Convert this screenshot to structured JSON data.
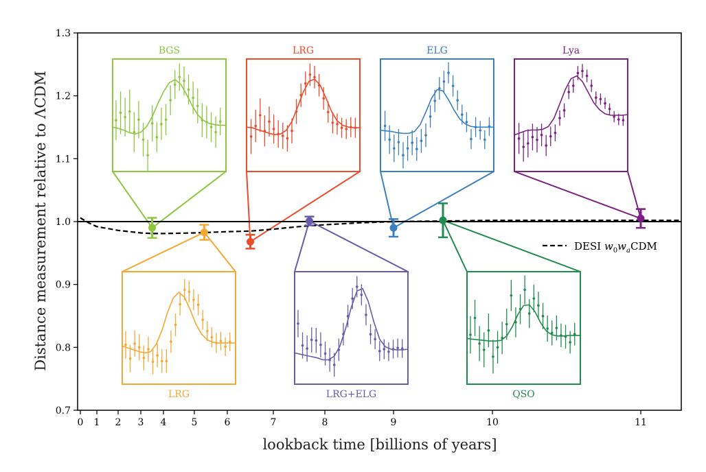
{
  "chart_data": {
    "type": "scatter",
    "xlabel": "lookback time [billions of years]",
    "ylabel": "Distance measurement relative to ΛCDM",
    "ylim": [
      0.7,
      1.3
    ],
    "yticks": [
      "0.7",
      "0.8",
      "0.9",
      "1.0",
      "1.1",
      "1.2",
      "1.3"
    ],
    "xticks": [
      "0",
      "1",
      "2",
      "3",
      "4",
      "5",
      "6",
      "7",
      "8",
      "9",
      "10",
      "11"
    ],
    "x_axis_note": "non-linear lookback-time axis",
    "grid": false,
    "reference_line_y": 1.0,
    "legend": {
      "position": "right",
      "entries": [
        "DESI w0waCDM"
      ]
    },
    "model_curve": {
      "name": "DESI w0waCDM",
      "style": "dashed",
      "x": [
        0,
        0.5,
        1,
        2,
        3,
        3.5,
        4,
        5,
        6,
        6.5,
        7,
        7.5,
        8,
        8.5,
        9,
        9.5,
        10,
        10.5,
        11,
        11.5
      ],
      "y": [
        1.006,
        0.998,
        0.992,
        0.986,
        0.982,
        0.981,
        0.981,
        0.982,
        0.984,
        0.985,
        0.988,
        0.992,
        0.995,
        0.998,
        1.0,
        1.001,
        1.002,
        1.002,
        1.002,
        1.002
      ]
    },
    "series": [
      {
        "name": "BGS",
        "color": "#8dc63f",
        "x": 3.5,
        "y": 0.99,
        "yerr": 0.016,
        "inset_position": "top"
      },
      {
        "name": "LRG",
        "color": "#f7a733",
        "x": 5.3,
        "y": 0.983,
        "yerr": 0.012,
        "inset_position": "bottom"
      },
      {
        "name": "LRG",
        "color": "#ee4b2b",
        "x": 6.5,
        "y": 0.968,
        "yerr": 0.011,
        "inset_position": "top"
      },
      {
        "name": "LRG+ELG",
        "color": "#6a5aad",
        "x": 7.7,
        "y": 1.001,
        "yerr": 0.007,
        "inset_position": "bottom"
      },
      {
        "name": "ELG",
        "color": "#3a7fbf",
        "x": 9.0,
        "y": 0.99,
        "yerr": 0.014,
        "inset_position": "top"
      },
      {
        "name": "QSO",
        "color": "#1e8c4e",
        "x": 9.5,
        "y": 1.002,
        "yerr": 0.027,
        "inset_position": "bottom"
      },
      {
        "name": "Lya",
        "color": "#7b2183",
        "x": 11.0,
        "y": 1.005,
        "yerr": 0.015,
        "inset_position": "top"
      }
    ],
    "insets": [
      {
        "label": "BGS",
        "line": [
          0.151,
          0.149,
          0.146,
          0.142,
          0.14,
          0.143,
          0.152,
          0.168,
          0.189,
          0.208,
          0.222,
          0.227,
          0.22,
          0.204,
          0.186,
          0.171,
          0.162,
          0.157,
          0.155,
          0.154,
          0.154
        ],
        "points": [
          [
            0.03,
            0.162,
            0.032
          ],
          [
            0.07,
            0.174,
            0.034
          ],
          [
            0.11,
            0.167,
            0.031
          ],
          [
            0.15,
            0.176,
            0.035
          ],
          [
            0.19,
            0.143,
            0.032
          ],
          [
            0.23,
            0.163,
            0.03
          ],
          [
            0.27,
            0.131,
            0.027
          ],
          [
            0.31,
            0.106,
            0.025
          ],
          [
            0.35,
            0.157,
            0.029
          ],
          [
            0.39,
            0.135,
            0.024
          ],
          [
            0.43,
            0.156,
            0.026
          ],
          [
            0.47,
            0.163,
            0.025
          ],
          [
            0.51,
            0.194,
            0.024
          ],
          [
            0.55,
            0.219,
            0.023
          ],
          [
            0.59,
            0.231,
            0.022
          ],
          [
            0.63,
            0.225,
            0.023
          ],
          [
            0.67,
            0.211,
            0.024
          ],
          [
            0.71,
            0.198,
            0.026
          ],
          [
            0.75,
            0.185,
            0.028
          ],
          [
            0.79,
            0.162,
            0.027
          ],
          [
            0.83,
            0.159,
            0.026
          ],
          [
            0.87,
            0.151,
            0.024
          ],
          [
            0.91,
            0.143,
            0.025
          ],
          [
            0.95,
            0.16,
            0.022
          ]
        ]
      },
      {
        "label": "LRG",
        "line": [
          0.151,
          0.15,
          0.147,
          0.144,
          0.141,
          0.139,
          0.14,
          0.146,
          0.16,
          0.183,
          0.207,
          0.224,
          0.228,
          0.218,
          0.198,
          0.176,
          0.161,
          0.154,
          0.151,
          0.15,
          0.15
        ],
        "points": [
          [
            0.04,
            0.136,
            0.028
          ],
          [
            0.08,
            0.153,
            0.026
          ],
          [
            0.12,
            0.17,
            0.027
          ],
          [
            0.16,
            0.145,
            0.025
          ],
          [
            0.2,
            0.16,
            0.024
          ],
          [
            0.24,
            0.148,
            0.023
          ],
          [
            0.28,
            0.14,
            0.022
          ],
          [
            0.32,
            0.137,
            0.021
          ],
          [
            0.36,
            0.133,
            0.021
          ],
          [
            0.4,
            0.145,
            0.02
          ],
          [
            0.44,
            0.176,
            0.02
          ],
          [
            0.48,
            0.202,
            0.019
          ],
          [
            0.52,
            0.221,
            0.019
          ],
          [
            0.56,
            0.235,
            0.018
          ],
          [
            0.6,
            0.231,
            0.018
          ],
          [
            0.64,
            0.218,
            0.018
          ],
          [
            0.68,
            0.197,
            0.018
          ],
          [
            0.72,
            0.175,
            0.017
          ],
          [
            0.76,
            0.158,
            0.017
          ],
          [
            0.8,
            0.156,
            0.017
          ],
          [
            0.84,
            0.15,
            0.016
          ],
          [
            0.88,
            0.148,
            0.016
          ],
          [
            0.92,
            0.151,
            0.016
          ],
          [
            0.96,
            0.15,
            0.016
          ]
        ]
      },
      {
        "label": "ELG",
        "line": [
          0.146,
          0.145,
          0.144,
          0.142,
          0.141,
          0.141,
          0.144,
          0.155,
          0.175,
          0.197,
          0.211,
          0.209,
          0.195,
          0.178,
          0.164,
          0.156,
          0.152,
          0.151,
          0.151,
          0.151,
          0.151
        ],
        "points": [
          [
            0.04,
            0.153,
            0.024
          ],
          [
            0.08,
            0.131,
            0.023
          ],
          [
            0.12,
            0.117,
            0.022
          ],
          [
            0.16,
            0.127,
            0.021
          ],
          [
            0.2,
            0.106,
            0.021
          ],
          [
            0.24,
            0.117,
            0.02
          ],
          [
            0.28,
            0.126,
            0.02
          ],
          [
            0.32,
            0.116,
            0.019
          ],
          [
            0.36,
            0.129,
            0.019
          ],
          [
            0.4,
            0.138,
            0.019
          ],
          [
            0.44,
            0.168,
            0.018
          ],
          [
            0.48,
            0.193,
            0.018
          ],
          [
            0.52,
            0.213,
            0.018
          ],
          [
            0.56,
            0.224,
            0.017
          ],
          [
            0.6,
            0.238,
            0.017
          ],
          [
            0.64,
            0.217,
            0.017
          ],
          [
            0.68,
            0.194,
            0.016
          ],
          [
            0.72,
            0.171,
            0.016
          ],
          [
            0.76,
            0.159,
            0.016
          ],
          [
            0.8,
            0.132,
            0.016
          ],
          [
            0.84,
            0.151,
            0.016
          ],
          [
            0.88,
            0.146,
            0.015
          ],
          [
            0.92,
            0.131,
            0.015
          ],
          [
            0.96,
            0.152,
            0.015
          ]
        ]
      },
      {
        "label": "Lya",
        "line": [
          0.152,
          0.155,
          0.158,
          0.159,
          0.159,
          0.16,
          0.164,
          0.176,
          0.196,
          0.217,
          0.232,
          0.236,
          0.228,
          0.213,
          0.198,
          0.188,
          0.182,
          0.18,
          0.18,
          0.18,
          0.181
        ],
        "points": [
          [
            0.04,
            0.147,
            0.022
          ],
          [
            0.08,
            0.135,
            0.021
          ],
          [
            0.12,
            0.14,
            0.02
          ],
          [
            0.16,
            0.149,
            0.019
          ],
          [
            0.2,
            0.145,
            0.018
          ],
          [
            0.24,
            0.152,
            0.016
          ],
          [
            0.28,
            0.137,
            0.015
          ],
          [
            0.32,
            0.15,
            0.014
          ],
          [
            0.36,
            0.155,
            0.012
          ],
          [
            0.4,
            0.176,
            0.011
          ],
          [
            0.44,
            0.187,
            0.01
          ],
          [
            0.48,
            0.213,
            0.01
          ],
          [
            0.52,
            0.222,
            0.01
          ],
          [
            0.56,
            0.24,
            0.01
          ],
          [
            0.6,
            0.243,
            0.01
          ],
          [
            0.64,
            0.236,
            0.009
          ],
          [
            0.68,
            0.222,
            0.009
          ],
          [
            0.72,
            0.205,
            0.009
          ],
          [
            0.76,
            0.203,
            0.008
          ],
          [
            0.8,
            0.197,
            0.008
          ],
          [
            0.84,
            0.189,
            0.008
          ],
          [
            0.88,
            0.178,
            0.008
          ],
          [
            0.92,
            0.174,
            0.008
          ],
          [
            0.96,
            0.173,
            0.008
          ]
        ]
      },
      {
        "label": "LRG",
        "line": [
          0.801,
          0.798,
          0.795,
          0.792,
          0.79,
          0.792,
          0.804,
          0.826,
          0.855,
          0.878,
          0.887,
          0.879,
          0.859,
          0.836,
          0.82,
          0.811,
          0.807,
          0.806,
          0.806,
          0.806,
          0.806
        ],
        "points": [
          [
            0.03,
            0.803,
            0.022
          ],
          [
            0.07,
            0.781,
            0.022
          ],
          [
            0.11,
            0.805,
            0.021
          ],
          [
            0.15,
            0.799,
            0.021
          ],
          [
            0.19,
            0.782,
            0.02
          ],
          [
            0.23,
            0.796,
            0.02
          ],
          [
            0.27,
            0.776,
            0.02
          ],
          [
            0.31,
            0.786,
            0.019
          ],
          [
            0.35,
            0.777,
            0.019
          ],
          [
            0.39,
            0.777,
            0.019
          ],
          [
            0.43,
            0.808,
            0.018
          ],
          [
            0.47,
            0.835,
            0.018
          ],
          [
            0.51,
            0.868,
            0.018
          ],
          [
            0.55,
            0.891,
            0.017
          ],
          [
            0.59,
            0.888,
            0.017
          ],
          [
            0.63,
            0.875,
            0.017
          ],
          [
            0.67,
            0.867,
            0.017
          ],
          [
            0.71,
            0.843,
            0.016
          ],
          [
            0.75,
            0.825,
            0.016
          ],
          [
            0.79,
            0.815,
            0.016
          ],
          [
            0.83,
            0.806,
            0.016
          ],
          [
            0.87,
            0.809,
            0.015
          ],
          [
            0.91,
            0.8,
            0.015
          ],
          [
            0.95,
            0.808,
            0.015
          ]
        ]
      },
      {
        "label": "LRG+ELG",
        "line": [
          0.79,
          0.788,
          0.786,
          0.784,
          0.782,
          0.779,
          0.779,
          0.785,
          0.801,
          0.829,
          0.863,
          0.889,
          0.893,
          0.872,
          0.839,
          0.812,
          0.8,
          0.796,
          0.795,
          0.795,
          0.796
        ],
        "points": [
          [
            0.03,
            0.837,
            0.022
          ],
          [
            0.07,
            0.802,
            0.021
          ],
          [
            0.11,
            0.797,
            0.021
          ],
          [
            0.15,
            0.811,
            0.02
          ],
          [
            0.19,
            0.81,
            0.02
          ],
          [
            0.23,
            0.803,
            0.02
          ],
          [
            0.27,
            0.789,
            0.019
          ],
          [
            0.31,
            0.779,
            0.019
          ],
          [
            0.35,
            0.771,
            0.019
          ],
          [
            0.39,
            0.795,
            0.018
          ],
          [
            0.43,
            0.82,
            0.018
          ],
          [
            0.47,
            0.849,
            0.018
          ],
          [
            0.51,
            0.877,
            0.017
          ],
          [
            0.55,
            0.896,
            0.017
          ],
          [
            0.59,
            0.883,
            0.017
          ],
          [
            0.63,
            0.851,
            0.017
          ],
          [
            0.67,
            0.82,
            0.016
          ],
          [
            0.71,
            0.812,
            0.016
          ],
          [
            0.75,
            0.793,
            0.016
          ],
          [
            0.79,
            0.796,
            0.016
          ],
          [
            0.83,
            0.792,
            0.015
          ],
          [
            0.87,
            0.796,
            0.015
          ],
          [
            0.91,
            0.798,
            0.015
          ],
          [
            0.95,
            0.797,
            0.015
          ]
        ]
      },
      {
        "label": "QSO",
        "line": [
          0.813,
          0.812,
          0.811,
          0.81,
          0.809,
          0.809,
          0.81,
          0.817,
          0.832,
          0.852,
          0.866,
          0.867,
          0.856,
          0.838,
          0.825,
          0.819,
          0.817,
          0.817,
          0.818,
          0.818,
          0.818
        ],
        "points": [
          [
            0.03,
            0.819,
            0.03
          ],
          [
            0.07,
            0.846,
            0.029
          ],
          [
            0.11,
            0.805,
            0.028
          ],
          [
            0.15,
            0.795,
            0.028
          ],
          [
            0.19,
            0.826,
            0.027
          ],
          [
            0.23,
            0.784,
            0.027
          ],
          [
            0.27,
            0.799,
            0.026
          ],
          [
            0.31,
            0.814,
            0.026
          ],
          [
            0.35,
            0.836,
            0.025
          ],
          [
            0.39,
            0.882,
            0.025
          ],
          [
            0.43,
            0.839,
            0.024
          ],
          [
            0.47,
            0.86,
            0.024
          ],
          [
            0.51,
            0.891,
            0.023
          ],
          [
            0.55,
            0.853,
            0.023
          ],
          [
            0.59,
            0.877,
            0.022
          ],
          [
            0.63,
            0.866,
            0.022
          ],
          [
            0.67,
            0.849,
            0.021
          ],
          [
            0.71,
            0.829,
            0.021
          ],
          [
            0.75,
            0.822,
            0.02
          ],
          [
            0.79,
            0.83,
            0.02
          ],
          [
            0.83,
            0.818,
            0.019
          ],
          [
            0.87,
            0.816,
            0.019
          ],
          [
            0.91,
            0.807,
            0.018
          ],
          [
            0.95,
            0.82,
            0.018
          ]
        ]
      }
    ]
  }
}
